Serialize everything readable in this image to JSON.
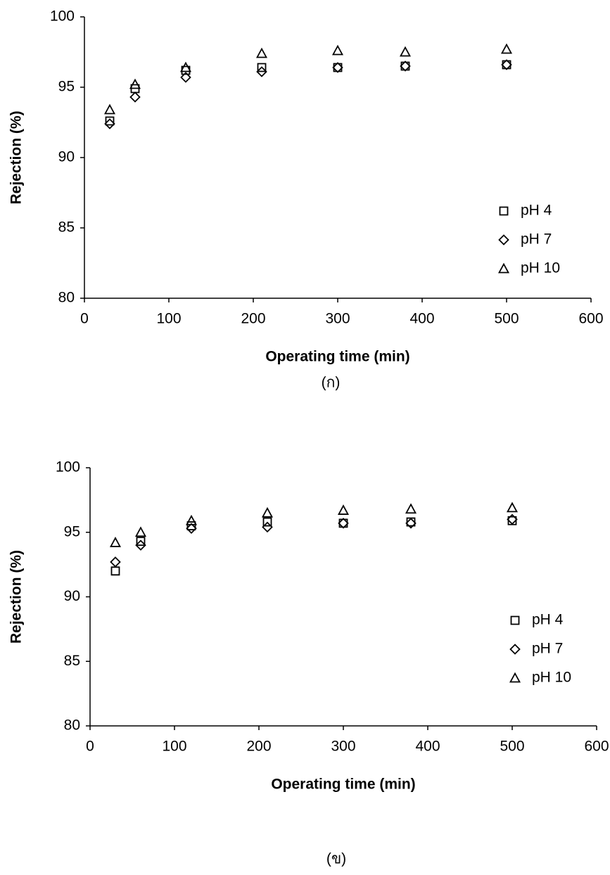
{
  "chart_data": [
    {
      "type": "scatter",
      "x_label": "Operating time (min)",
      "y_label": "Rejection (%)",
      "caption": "(ก)",
      "xlim": [
        0,
        600
      ],
      "xticks": [
        0,
        100,
        200,
        300,
        400,
        500,
        600
      ],
      "ylim": [
        80,
        100
      ],
      "yticks": [
        80,
        85,
        90,
        95,
        100
      ],
      "legend": "lower right",
      "x": [
        30,
        60,
        120,
        210,
        300,
        380,
        500
      ],
      "series": [
        {
          "name": "pH 4",
          "marker": "square",
          "color": "#000000",
          "values": [
            92.6,
            94.9,
            96.2,
            96.4,
            96.4,
            96.5,
            96.6
          ]
        },
        {
          "name": "pH 7",
          "marker": "diamond",
          "color": "#000000",
          "values": [
            92.4,
            94.3,
            95.7,
            96.1,
            96.4,
            96.5,
            96.6
          ]
        },
        {
          "name": "pH 10",
          "marker": "triangle",
          "color": "#000000",
          "values": [
            93.4,
            95.2,
            96.4,
            97.4,
            97.6,
            97.5,
            97.7
          ]
        }
      ]
    },
    {
      "type": "scatter",
      "x_label": "Operating time (min)",
      "y_label": "Rejection (%)",
      "caption": "(ข)",
      "xlim": [
        0,
        600
      ],
      "xticks": [
        0,
        100,
        200,
        300,
        400,
        500,
        600
      ],
      "ylim": [
        80,
        100
      ],
      "yticks": [
        80,
        85,
        90,
        95,
        100
      ],
      "legend": "lower right",
      "x": [
        30,
        60,
        120,
        210,
        300,
        380,
        500
      ],
      "series": [
        {
          "name": "pH 4",
          "marker": "square",
          "color": "#000000",
          "values": [
            92.0,
            94.3,
            95.5,
            95.8,
            95.7,
            95.8,
            95.9
          ]
        },
        {
          "name": "pH 7",
          "marker": "diamond",
          "color": "#000000",
          "values": [
            92.7,
            94.0,
            95.3,
            95.4,
            95.7,
            95.7,
            96.0
          ]
        },
        {
          "name": "pH 10",
          "marker": "triangle",
          "color": "#000000",
          "values": [
            94.2,
            95.0,
            95.9,
            96.5,
            96.7,
            96.8,
            96.9
          ]
        }
      ]
    }
  ]
}
